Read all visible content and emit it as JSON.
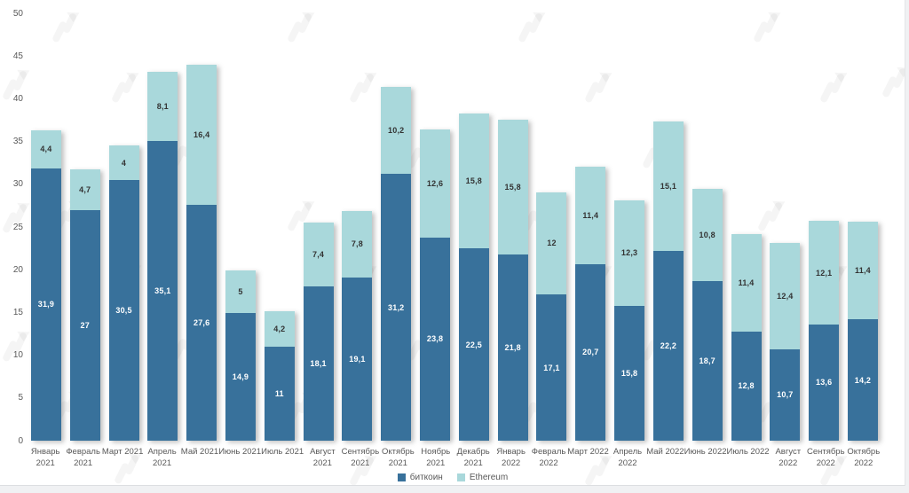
{
  "chart_data": {
    "type": "bar",
    "stacked": true,
    "title": "",
    "categories": [
      "Январь\n2021",
      "Февраль\n2021",
      "Март 2021",
      "Апрель\n2021",
      "Май 2021",
      "Июнь 2021",
      "Июль 2021",
      "Август\n2021",
      "Сентябрь\n2021",
      "Октябрь\n2021",
      "Ноябрь\n2021",
      "Декабрь\n2021",
      "Январь\n2022",
      "Февраль\n2022",
      "Март 2022",
      "Апрель\n2022",
      "Май 2022",
      "Июнь 2022",
      "Июль 2022",
      "Август\n2022",
      "Сентябрь\n2022",
      "Октябрь\n2022"
    ],
    "series": [
      {
        "name": "биткоин",
        "color": "#38719b",
        "label_color": "#ffffff",
        "values": [
          31.9,
          27,
          30.5,
          35.1,
          27.6,
          14.9,
          11,
          18.1,
          19.1,
          31.2,
          23.8,
          22.5,
          21.8,
          17.1,
          20.7,
          15.8,
          22.2,
          18.7,
          12.8,
          10.7,
          13.6,
          14.2
        ]
      },
      {
        "name": "Ethereum",
        "color": "#a9d8db",
        "label_color": "#333333",
        "values": [
          4.4,
          4.7,
          4,
          8.1,
          16.4,
          5,
          4.2,
          7.4,
          7.8,
          10.2,
          12.6,
          15.8,
          15.8,
          12,
          11.4,
          12.3,
          15.1,
          10.8,
          11.4,
          12.4,
          12.1,
          11.4
        ]
      }
    ],
    "yticks": [
      "0",
      "5",
      "10",
      "15",
      "20",
      "25",
      "30",
      "35",
      "40",
      "45",
      "50"
    ],
    "ylim": [
      0,
      50
    ],
    "grid": false,
    "number_format": "comma-decimal",
    "legend_position": "bottom-center",
    "xlabel": "",
    "ylabel": ""
  },
  "legend": {
    "items": [
      {
        "label": "биткоин",
        "color": "#38719b"
      },
      {
        "label": "Ethereum",
        "color": "#a9d8db"
      }
    ]
  },
  "watermark": {
    "icon": "forklog-logo",
    "color": "rgba(110,110,110,0.07)"
  }
}
